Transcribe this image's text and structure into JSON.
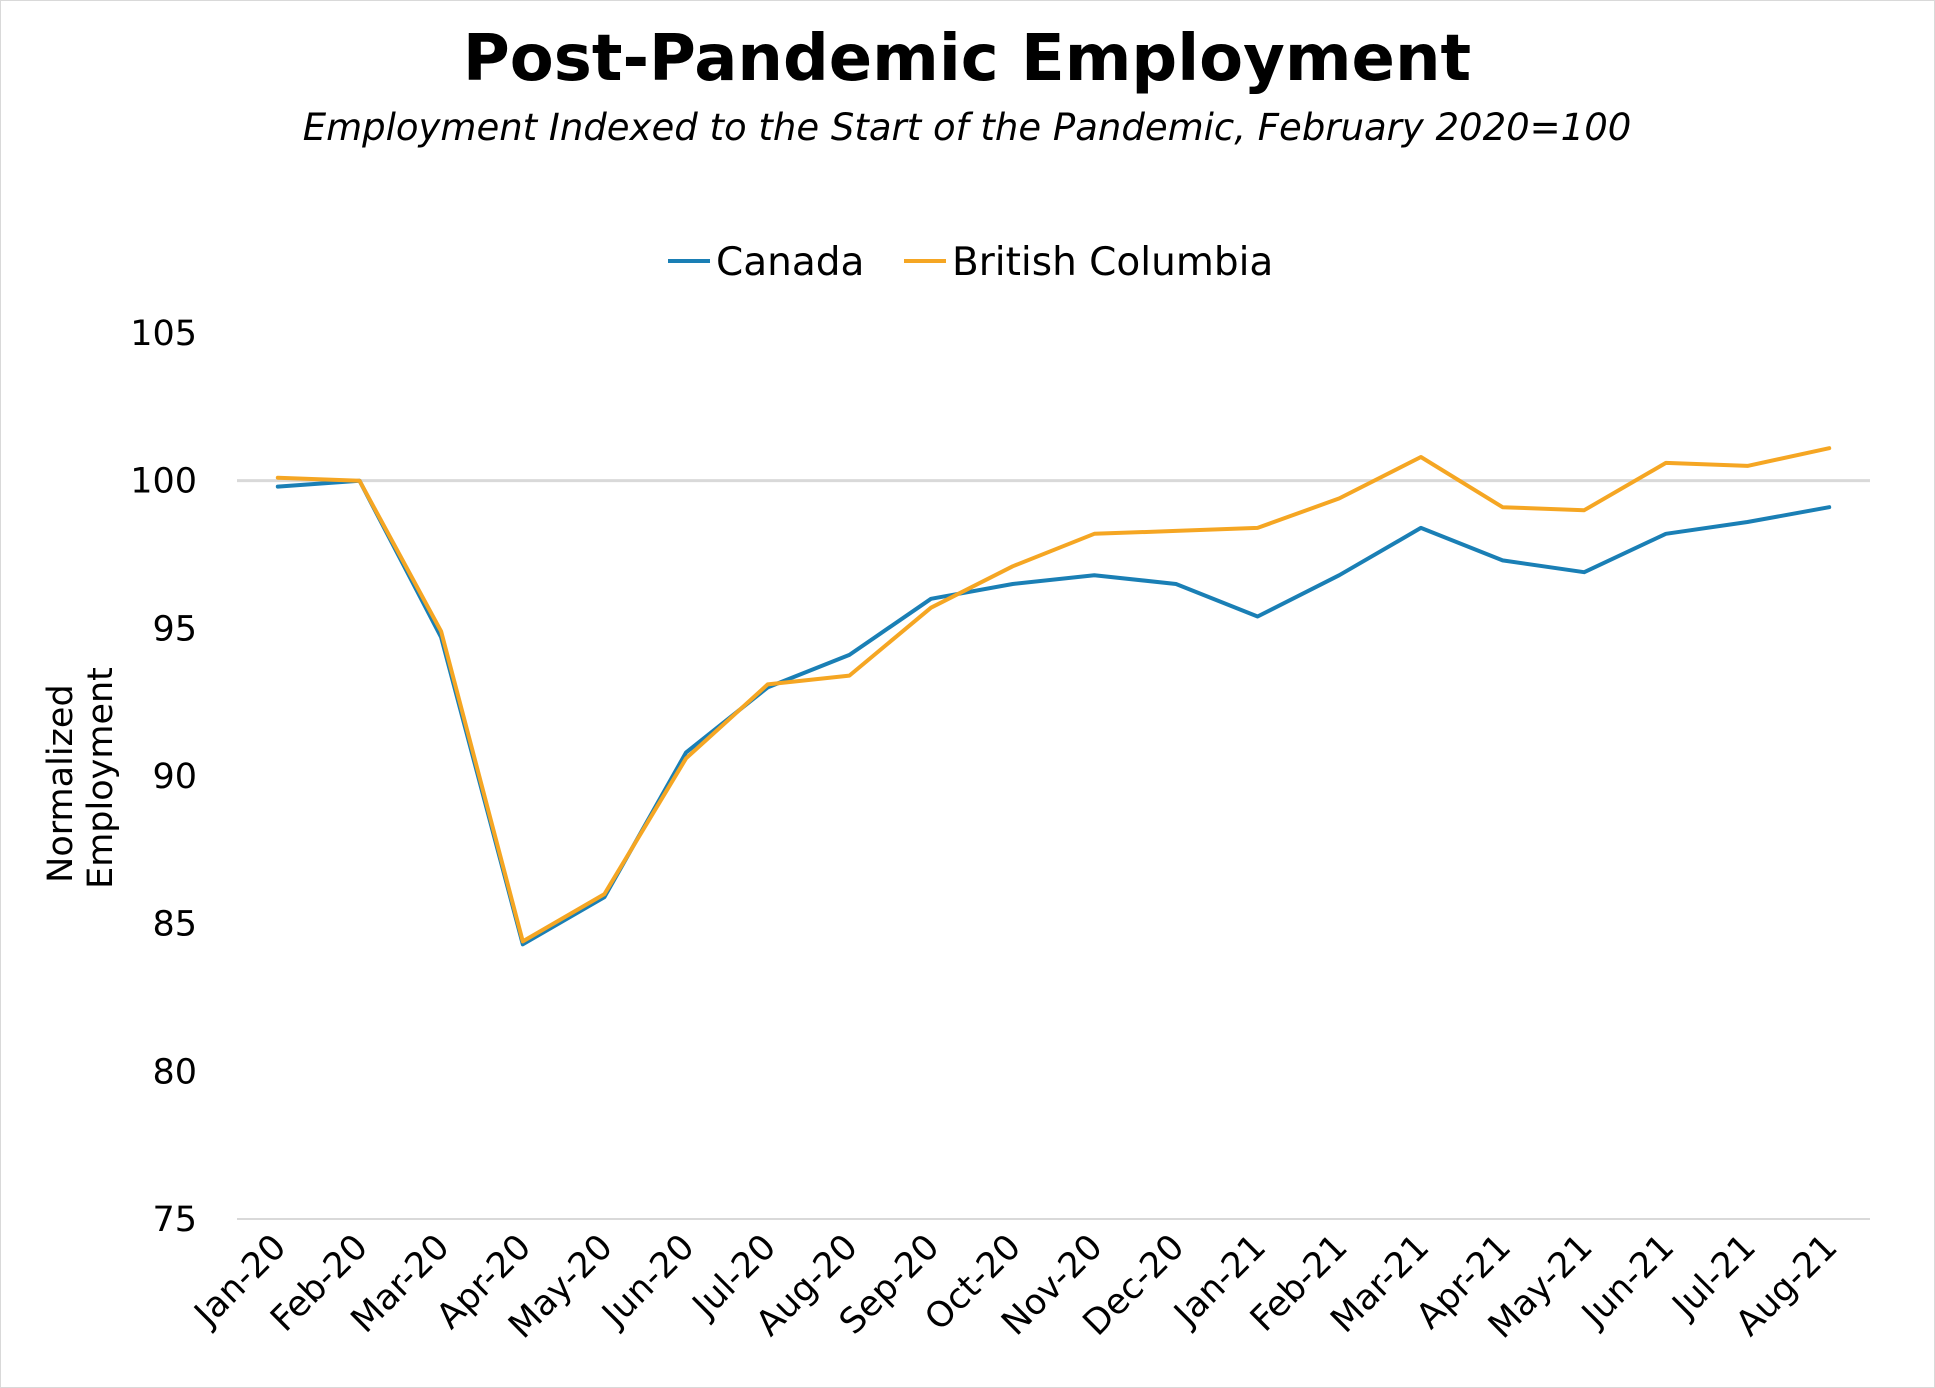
{
  "chart_data": {
    "type": "line",
    "title": "Post-Pandemic Employment",
    "subtitle": "Employment Indexed to the Start of the Pandemic, February 2020=100",
    "xlabel": "",
    "ylabel": "Normalized Employment",
    "ylabel_lines": [
      "Normalized",
      "Employment"
    ],
    "ylim": [
      75,
      105
    ],
    "yticks": [
      75,
      80,
      85,
      90,
      95,
      100,
      105
    ],
    "reference_line": 100,
    "legend_position": "top-center",
    "grid": false,
    "categories": [
      "Jan-20",
      "Feb-20",
      "Mar-20",
      "Apr-20",
      "May-20",
      "Jun-20",
      "Jul-20",
      "Aug-20",
      "Sep-20",
      "Oct-20",
      "Nov-20",
      "Dec-20",
      "Jan-21",
      "Feb-21",
      "Mar-21",
      "Apr-21",
      "May-21",
      "Jun-21",
      "Jul-21",
      "Aug-21"
    ],
    "series": [
      {
        "name": "Canada",
        "color": "#1a7fb5",
        "values": [
          99.8,
          100.0,
          94.7,
          84.3,
          85.9,
          90.8,
          93.0,
          94.1,
          96.0,
          96.5,
          96.8,
          96.5,
          95.4,
          96.8,
          98.4,
          97.3,
          96.9,
          98.2,
          98.6,
          99.1
        ]
      },
      {
        "name": "British Columbia",
        "color": "#f5a623",
        "values": [
          100.1,
          100.0,
          94.9,
          84.4,
          86.0,
          90.6,
          93.1,
          93.4,
          95.7,
          97.1,
          98.2,
          98.3,
          98.4,
          99.4,
          100.8,
          99.1,
          99.0,
          100.6,
          100.5,
          101.1
        ]
      }
    ]
  },
  "colors": {
    "reference_line": "#d9d9d9",
    "axis_line": "#d9d9d9"
  }
}
